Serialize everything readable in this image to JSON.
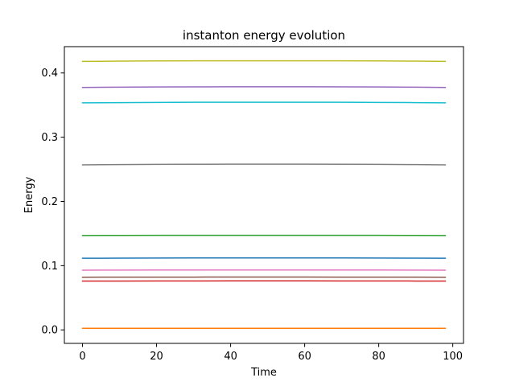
{
  "chart_data": {
    "type": "line",
    "title": "instanton energy evolution",
    "xlabel": "Time",
    "ylabel": "Energy",
    "xlim": [
      -4.9,
      102.9
    ],
    "ylim": [
      -0.021,
      0.441
    ],
    "xticks": [
      0,
      20,
      40,
      60,
      80,
      100
    ],
    "yticks": [
      0.0,
      0.1,
      0.2,
      0.3,
      0.4
    ],
    "xtick_labels": [
      "0",
      "20",
      "40",
      "60",
      "80",
      "100"
    ],
    "ytick_labels": [
      "0.0",
      "0.1",
      "0.2",
      "0.3",
      "0.4"
    ],
    "grid": false,
    "legend": "none",
    "x": [
      0,
      10,
      20,
      30,
      40,
      50,
      60,
      70,
      80,
      90,
      98
    ],
    "series": [
      {
        "color": "#1f77b4",
        "values": [
          0.1115,
          0.1117,
          0.1119,
          0.112,
          0.1121,
          0.1121,
          0.1121,
          0.112,
          0.1119,
          0.1117,
          0.1115
        ]
      },
      {
        "color": "#ff7f0e",
        "values": [
          0.0025,
          0.0025,
          0.0025,
          0.0025,
          0.0025,
          0.0025,
          0.0025,
          0.0025,
          0.0025,
          0.0025,
          0.0025
        ]
      },
      {
        "color": "#2ca02c",
        "values": [
          0.147,
          0.1471,
          0.1472,
          0.1473,
          0.1473,
          0.1473,
          0.1473,
          0.1473,
          0.1472,
          0.1471,
          0.147
        ]
      },
      {
        "color": "#d62728",
        "values": [
          0.076,
          0.0761,
          0.0762,
          0.0762,
          0.0763,
          0.0763,
          0.0763,
          0.0762,
          0.0762,
          0.0761,
          0.076
        ]
      },
      {
        "color": "#9467bd",
        "values": [
          0.3775,
          0.3779,
          0.3782,
          0.3784,
          0.3785,
          0.3785,
          0.3785,
          0.3784,
          0.3782,
          0.3779,
          0.3775
        ]
      },
      {
        "color": "#8c564b",
        "values": [
          0.082,
          0.0821,
          0.0822,
          0.0822,
          0.0823,
          0.0823,
          0.0823,
          0.0822,
          0.0822,
          0.0821,
          0.082
        ]
      },
      {
        "color": "#e377c2",
        "values": [
          0.093,
          0.0931,
          0.0932,
          0.0932,
          0.0933,
          0.0933,
          0.0933,
          0.0932,
          0.0932,
          0.0931,
          0.093
        ]
      },
      {
        "color": "#7f7f7f",
        "values": [
          0.257,
          0.2574,
          0.2577,
          0.2579,
          0.258,
          0.258,
          0.258,
          0.2579,
          0.2577,
          0.2574,
          0.257
        ]
      },
      {
        "color": "#bcbd22",
        "values": [
          0.418,
          0.4184,
          0.4187,
          0.4189,
          0.419,
          0.419,
          0.419,
          0.4189,
          0.4187,
          0.4184,
          0.418
        ]
      },
      {
        "color": "#17becf",
        "values": [
          0.3535,
          0.3539,
          0.3542,
          0.3544,
          0.3545,
          0.3545,
          0.3545,
          0.3544,
          0.3542,
          0.3539,
          0.3535
        ]
      }
    ]
  }
}
